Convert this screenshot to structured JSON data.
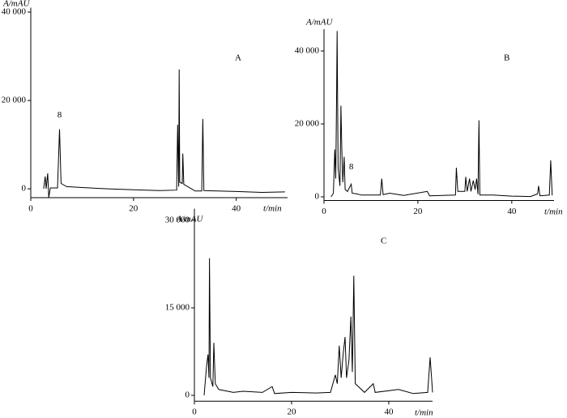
{
  "chart_data": [
    {
      "type": "line",
      "panel_label": "A",
      "y_label": "A/mAU",
      "x_label": "t/min",
      "x": [
        2.5,
        2.8,
        3.0,
        3.3,
        3.5,
        3.8,
        5.2,
        5.6,
        5.9,
        7,
        10,
        15,
        20,
        25,
        28.4,
        28.6,
        28.8,
        28.9,
        29.0,
        29.5,
        29.6,
        29.8,
        32,
        33.3,
        33.5,
        33.7,
        40,
        45,
        49.5
      ],
      "values": [
        0,
        2800,
        0,
        3500,
        -2000,
        200,
        200,
        13500,
        1200,
        500,
        300,
        0,
        -200,
        -400,
        -300,
        14500,
        500,
        27000,
        1500,
        1200,
        8000,
        1000,
        -500,
        -500,
        15800,
        -400,
        -600,
        -800,
        -700
      ],
      "color": "#000000",
      "annotations": [
        {
          "text": "8",
          "x": 5.6,
          "y": 15500
        }
      ],
      "xlim": [
        0,
        50
      ],
      "ylim": [
        -2000,
        41000
      ],
      "xticks": [
        0,
        20,
        40
      ],
      "yticks": [
        0,
        {
          "value": 20000,
          "label": "20 000"
        },
        {
          "value": 40000,
          "label": "40 000"
        }
      ]
    },
    {
      "type": "line",
      "panel_label": "B",
      "y_label": "A/mAU",
      "x_label": "t/min",
      "x": [
        1.5,
        2,
        2.3,
        2.5,
        2.7,
        2.8,
        3.0,
        3.4,
        3.6,
        3.8,
        4.0,
        4.3,
        4.5,
        5,
        5.8,
        6.0,
        7,
        8,
        12,
        12.3,
        12.6,
        14,
        17,
        22,
        22.5,
        28,
        28.2,
        28.5,
        30,
        30.2,
        30.5,
        31,
        31.3,
        31.8,
        32.2,
        32.5,
        32.8,
        33,
        33.2,
        36,
        40,
        44,
        45.5,
        45.7,
        46,
        48,
        48.3,
        48.6
      ],
      "values": [
        0,
        1000,
        13000,
        5000,
        29000,
        45500,
        8000,
        3000,
        25000,
        13000,
        4000,
        11000,
        2000,
        1500,
        3500,
        1000,
        800,
        500,
        500,
        5000,
        600,
        1000,
        400,
        1500,
        300,
        500,
        8000,
        1500,
        1500,
        5500,
        1500,
        5000,
        1500,
        4500,
        2000,
        5000,
        700,
        21000,
        500,
        500,
        200,
        100,
        800,
        3000,
        300,
        500,
        10000,
        400
      ],
      "color": "#000000",
      "annotations": [
        {
          "text": "8",
          "x": 5.8,
          "y": 6800
        }
      ],
      "xlim": [
        0,
        49
      ],
      "ylim": [
        -1000,
        46000
      ],
      "xticks": [
        0,
        20,
        40
      ],
      "yticks": [
        0,
        {
          "value": 20000,
          "label": "20 000"
        },
        {
          "value": 40000,
          "label": "40 000"
        }
      ]
    },
    {
      "type": "line",
      "panel_label": "C",
      "y_label": "A/mAU",
      "x_label": "t/min",
      "x": [
        2,
        2.5,
        2.8,
        3.0,
        3.1,
        3.3,
        3.8,
        4.0,
        4.3,
        5,
        8,
        10,
        14,
        16,
        16.5,
        20,
        25,
        28,
        29,
        29.4,
        29.8,
        30.2,
        30.6,
        31,
        31.3,
        31.8,
        32.2,
        32.5,
        32.8,
        33.1,
        35,
        36.8,
        37.2,
        42,
        45,
        48,
        48.5,
        48.8,
        49
      ],
      "values": [
        0,
        5000,
        7000,
        3000,
        23500,
        3000,
        1500,
        9000,
        2000,
        1000,
        500,
        700,
        500,
        1500,
        300,
        500,
        400,
        500,
        3500,
        2000,
        8500,
        3000,
        7000,
        10000,
        3000,
        6000,
        13500,
        4000,
        20500,
        2000,
        500,
        2000,
        500,
        1000,
        300,
        500,
        6500,
        3000,
        500
      ],
      "color": "#000000",
      "annotations": [],
      "xlim": [
        0,
        49
      ],
      "ylim": [
        -1000,
        32000
      ],
      "xticks": [
        0,
        20,
        40
      ],
      "yticks": [
        0,
        {
          "value": 15000,
          "label": "15 000"
        },
        {
          "value": 30000,
          "label": "30 000"
        }
      ]
    }
  ]
}
